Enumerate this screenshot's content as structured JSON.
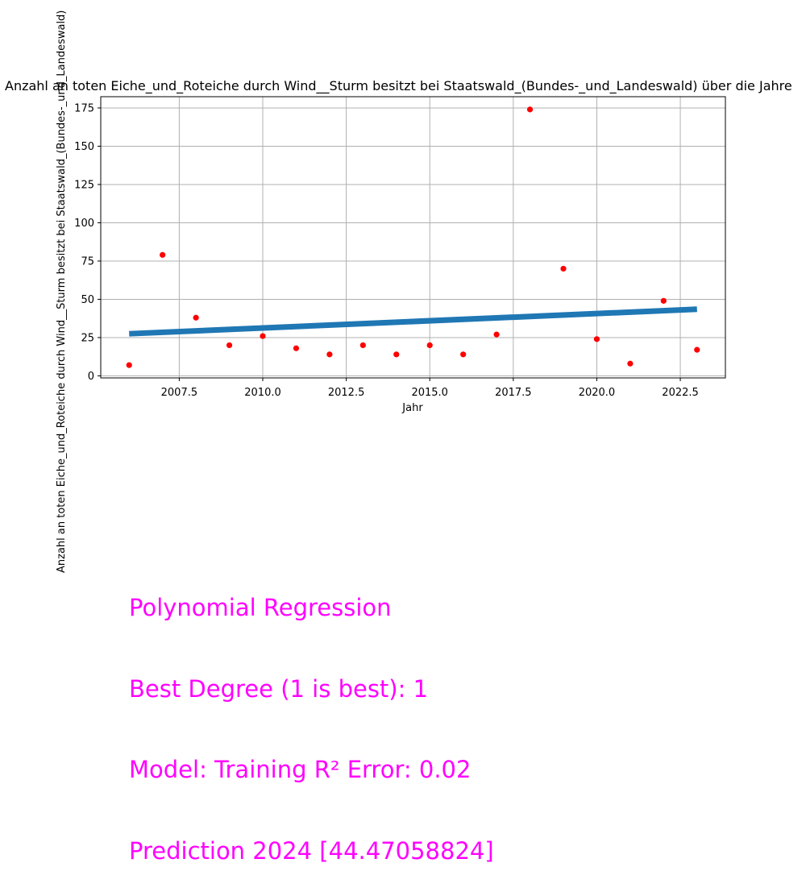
{
  "chart_data": {
    "type": "scatter",
    "title": "Anzahl an toten Eiche_und_Roteiche durch Wind__Sturm besitzt bei Staatswald_(Bundes-_und_Landeswald) über die Jahre",
    "xlabel": "Jahr",
    "ylabel": "Anzahl an toten Eiche_und_Roteiche durch Wind__Sturm besitzt bei Staatswald_(Bundes-_und_Landeswald)",
    "xlim": [
      2005.15,
      2023.85
    ],
    "ylim": [
      -1.35,
      182.35
    ],
    "xticks": [
      2007.5,
      2010.0,
      2012.5,
      2015.0,
      2017.5,
      2020.0,
      2022.5
    ],
    "xtick_labels": [
      "2007.5",
      "2010.0",
      "2012.5",
      "2015.0",
      "2017.5",
      "2020.0",
      "2022.5"
    ],
    "yticks": [
      0,
      25,
      50,
      75,
      100,
      125,
      150,
      175
    ],
    "ytick_labels": [
      "0",
      "25",
      "50",
      "75",
      "100",
      "125",
      "150",
      "175"
    ],
    "grid": true,
    "series": [
      {
        "kind": "points",
        "color": "#ff0000",
        "x": [
          2006,
          2007,
          2008,
          2009,
          2010,
          2011,
          2012,
          2013,
          2014,
          2015,
          2016,
          2017,
          2018,
          2019,
          2020,
          2021,
          2022,
          2023
        ],
        "y": [
          7,
          79,
          38,
          20,
          26,
          18,
          14,
          20,
          14,
          20,
          14,
          27,
          174,
          70,
          24,
          8,
          49,
          17
        ]
      },
      {
        "kind": "fit",
        "color": "#1f77b4",
        "x": [
          2006,
          2023
        ],
        "y": [
          27.5,
          43.5
        ]
      }
    ]
  },
  "annotation": {
    "color": "#ff00ff",
    "lines": [
      "Polynomial Regression",
      "Best Degree (1 is best): 1",
      "Model: Training R² Error: 0.02",
      "Prediction 2024 [44.47058824]"
    ]
  }
}
